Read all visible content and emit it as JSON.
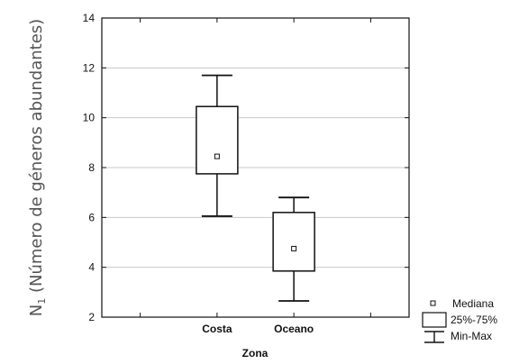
{
  "chart_data": {
    "type": "box",
    "xlabel": "Zona",
    "ylabel_prefix": "N",
    "ylabel_sub": "1",
    "ylabel_rest": " (Número de géneros abundantes)",
    "ylim": [
      2,
      14
    ],
    "yticks": [
      2,
      4,
      6,
      8,
      10,
      12,
      14
    ],
    "grid": true,
    "legend_position": "bottom-right",
    "categories": [
      "Costa",
      "Oceano"
    ],
    "series": [
      {
        "category": "Costa",
        "min": 6.05,
        "q1": 7.75,
        "median": 8.45,
        "q3": 10.45,
        "max": 11.7
      },
      {
        "category": "Oceano",
        "min": 2.65,
        "q1": 3.85,
        "median": 4.75,
        "q3": 6.2,
        "max": 6.8
      }
    ],
    "legend": {
      "median_label": "Mediana",
      "box_label": "25%-75%",
      "whisker_label": "Min-Max"
    }
  }
}
